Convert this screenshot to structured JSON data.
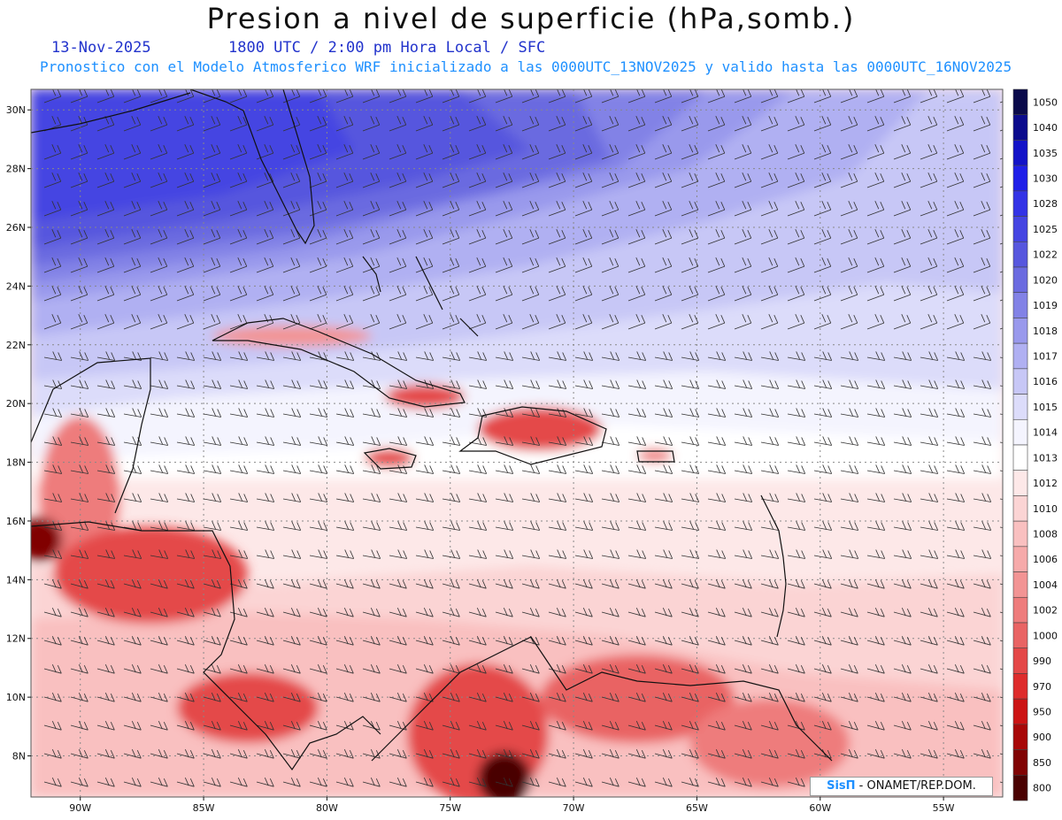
{
  "header": {
    "title": "Presion a nivel de superficie (hPa,somb.)",
    "date": "13-Nov-2025",
    "time": "1800 UTC / 2:00 pm Hora Local / SFC",
    "forecast": "Pronostico con el Modelo Atmosferico WRF inicializado a las 0000UTC_13NOV2025 y valido hasta las  0000UTC_16NOV2025"
  },
  "map": {
    "lat_labels": [
      "30N",
      "28N",
      "26N",
      "24N",
      "22N",
      "20N",
      "18N",
      "16N",
      "14N",
      "12N",
      "10N",
      "8N"
    ],
    "lon_labels": [
      "90W",
      "85W",
      "80W",
      "75W",
      "70W",
      "65W",
      "60W",
      "55W"
    ]
  },
  "colorbar": {
    "levels": [
      "1050",
      "1040",
      "1035",
      "1030",
      "1028",
      "1025",
      "1022",
      "1020",
      "1019",
      "1018",
      "1017",
      "1016",
      "1015",
      "1014",
      "1013",
      "1012",
      "1010",
      "1008",
      "1006",
      "1004",
      "1002",
      "1000",
      "990",
      "970",
      "950",
      "900",
      "850",
      "800"
    ],
    "colors": [
      "#0a0a4a",
      "#0b0b8c",
      "#1313c8",
      "#1f1fe8",
      "#3333e6",
      "#4545e2",
      "#5757de",
      "#6b6be0",
      "#8282e6",
      "#9999ec",
      "#b0b0f2",
      "#c7c7f6",
      "#dcdcfa",
      "#f4f4fe",
      "#ffffff",
      "#fde8e8",
      "#fbd4d4",
      "#f9c0c0",
      "#f6aaaa",
      "#f29494",
      "#ee7c7c",
      "#e96464",
      "#e44848",
      "#de2c2c",
      "#cc1414",
      "#a80808",
      "#800404",
      "#4a0202"
    ]
  },
  "credit": {
    "brand": "SisΠ",
    "text": "- ONAMET/REP.DOM."
  }
}
